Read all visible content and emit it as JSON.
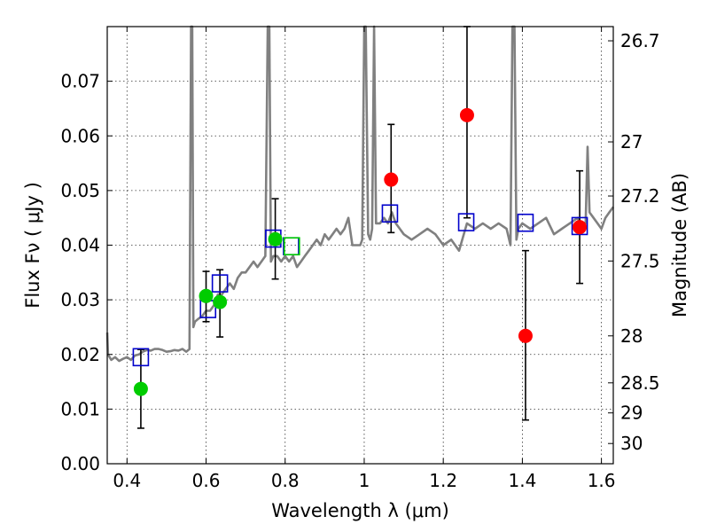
{
  "chart_data": {
    "type": "scatter",
    "xlabel": "Wavelength  λ (μm)",
    "ylabel": "Flux  Fν  ( μJy )",
    "ylabel_right": "Magnitude (AB)",
    "xlim": [
      0.35,
      1.63
    ],
    "ylim": [
      0.0,
      0.08
    ],
    "grid": true,
    "x_ticks": [
      0.4,
      0.6,
      0.8,
      1.0,
      1.2,
      1.4,
      1.6
    ],
    "x_tick_labels": [
      "0.4",
      "0.6",
      "0.8",
      "1",
      "1.2",
      "1.4",
      "1.6"
    ],
    "y_ticks": [
      0.0,
      0.01,
      0.02,
      0.03,
      0.04,
      0.05,
      0.06,
      0.07
    ],
    "y_tick_labels": [
      "0.00",
      "0.01",
      "0.02",
      "0.03",
      "0.04",
      "0.05",
      "0.06",
      "0.07"
    ],
    "right_ticks": [
      {
        "label": "26.7",
        "flux": 0.0774
      },
      {
        "label": "27",
        "flux": 0.0589
      },
      {
        "label": "27.2",
        "flux": 0.049
      },
      {
        "label": "27.5",
        "flux": 0.0371
      },
      {
        "label": "28",
        "flux": 0.0234
      },
      {
        "label": "28.5",
        "flux": 0.0148
      },
      {
        "label": "29",
        "flux": 0.0093
      },
      {
        "label": "30",
        "flux": 0.0037
      }
    ],
    "series": [
      {
        "color": "#808080",
        "style": "line",
        "x": [
          0.35,
          0.352,
          0.36,
          0.37,
          0.38,
          0.39,
          0.4,
          0.41,
          0.42,
          0.43,
          0.44,
          0.45,
          0.46,
          0.47,
          0.48,
          0.49,
          0.5,
          0.51,
          0.52,
          0.53,
          0.54,
          0.55,
          0.558,
          0.562,
          0.565,
          0.568,
          0.572,
          0.58,
          0.59,
          0.6,
          0.61,
          0.62,
          0.63,
          0.64,
          0.65,
          0.66,
          0.67,
          0.68,
          0.69,
          0.7,
          0.71,
          0.72,
          0.73,
          0.74,
          0.75,
          0.756,
          0.76,
          0.764,
          0.77,
          0.78,
          0.79,
          0.8,
          0.81,
          0.82,
          0.83,
          0.84,
          0.85,
          0.86,
          0.87,
          0.88,
          0.89,
          0.9,
          0.91,
          0.92,
          0.93,
          0.94,
          0.95,
          0.96,
          0.97,
          0.98,
          0.99,
          0.995,
          1.0,
          1.004,
          1.01,
          1.015,
          1.02,
          1.025,
          1.03,
          1.04,
          1.05,
          1.06,
          1.07,
          1.08,
          1.09,
          1.1,
          1.12,
          1.14,
          1.16,
          1.18,
          1.2,
          1.22,
          1.24,
          1.26,
          1.28,
          1.3,
          1.32,
          1.34,
          1.36,
          1.37,
          1.375,
          1.38,
          1.385,
          1.39,
          1.4,
          1.42,
          1.44,
          1.46,
          1.48,
          1.5,
          1.52,
          1.54,
          1.55,
          1.56,
          1.565,
          1.57,
          1.58,
          1.59,
          1.6,
          1.61,
          1.62,
          1.63
        ],
        "y": [
          0.024,
          0.02,
          0.019,
          0.0195,
          0.0188,
          0.0192,
          0.0195,
          0.019,
          0.0198,
          0.02,
          0.0205,
          0.0208,
          0.0207,
          0.021,
          0.021,
          0.0208,
          0.0205,
          0.0206,
          0.0208,
          0.0207,
          0.021,
          0.0205,
          0.021,
          0.08,
          0.08,
          0.025,
          0.026,
          0.0265,
          0.027,
          0.028,
          0.028,
          0.029,
          0.031,
          0.031,
          0.032,
          0.033,
          0.032,
          0.034,
          0.035,
          0.035,
          0.036,
          0.037,
          0.036,
          0.037,
          0.038,
          0.08,
          0.08,
          0.037,
          0.038,
          0.038,
          0.037,
          0.038,
          0.037,
          0.038,
          0.036,
          0.037,
          0.038,
          0.039,
          0.04,
          0.041,
          0.04,
          0.042,
          0.041,
          0.042,
          0.043,
          0.042,
          0.043,
          0.045,
          0.04,
          0.04,
          0.04,
          0.041,
          0.08,
          0.08,
          0.042,
          0.041,
          0.043,
          0.08,
          0.044,
          0.044,
          0.045,
          0.044,
          0.046,
          0.044,
          0.043,
          0.042,
          0.041,
          0.042,
          0.043,
          0.042,
          0.04,
          0.041,
          0.039,
          0.044,
          0.043,
          0.044,
          0.043,
          0.044,
          0.043,
          0.04,
          0.08,
          0.08,
          0.041,
          0.043,
          0.044,
          0.043,
          0.044,
          0.045,
          0.042,
          0.043,
          0.044,
          0.045,
          0.043,
          0.044,
          0.058,
          0.046,
          0.045,
          0.044,
          0.043,
          0.045,
          0.046,
          0.047
        ]
      },
      {
        "color": "#0000cc",
        "style": "open-square",
        "x": [
          0.435,
          0.605,
          0.635,
          0.77,
          0.815,
          1.065,
          1.258,
          1.408,
          1.545
        ],
        "y": [
          0.0195,
          0.0283,
          0.033,
          0.0412,
          0.0398,
          0.0458,
          0.0442,
          0.0441,
          0.0435
        ]
      },
      {
        "color": "#00cc00",
        "style": "filled-circle",
        "x": [
          0.435,
          0.6,
          0.635,
          0.775
        ],
        "y": [
          0.0137,
          0.0307,
          0.0296,
          0.0411
        ],
        "yerr_low": [
          0.0065,
          0.026,
          0.0232,
          0.0338
        ],
        "yerr_high": [
          0.0209,
          0.0352,
          0.0355,
          0.0485
        ]
      },
      {
        "color": "#ff0000",
        "style": "filled-circle",
        "x": [
          1.068,
          1.26,
          1.408,
          1.545
        ],
        "y": [
          0.052,
          0.0638,
          0.0234,
          0.0433
        ],
        "yerr_low": [
          0.0423,
          0.045,
          0.008,
          0.033
        ],
        "yerr_high": [
          0.0621,
          0.08,
          0.039,
          0.0536
        ]
      },
      {
        "color": "#00cc00",
        "style": "open-square",
        "x": [
          0.817
        ],
        "y": [
          0.0398
        ]
      }
    ]
  }
}
